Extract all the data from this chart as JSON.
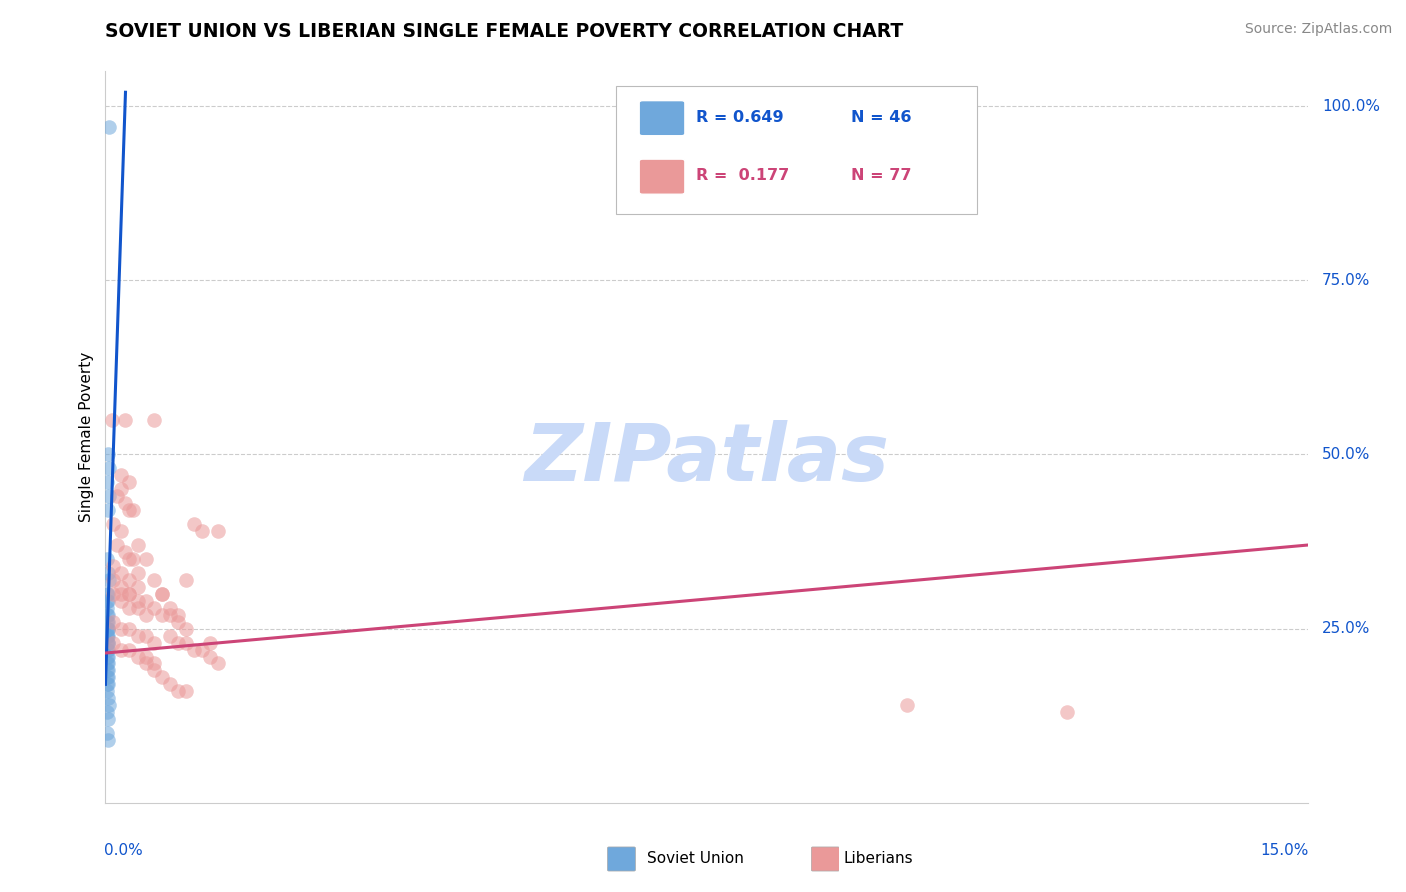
{
  "title": "SOVIET UNION VS LIBERIAN SINGLE FEMALE POVERTY CORRELATION CHART",
  "source": "Source: ZipAtlas.com",
  "ylabel": "Single Female Poverty",
  "x_min": 0.0,
  "x_max": 0.15,
  "y_min": 0.0,
  "y_max": 1.05,
  "right_yticks": [
    0.25,
    0.5,
    0.75,
    1.0
  ],
  "right_yticklabels": [
    "25.0%",
    "50.0%",
    "75.0%",
    "100.0%"
  ],
  "legend_r1": "R = 0.649",
  "legend_n1": "N = 46",
  "legend_r2": "R =  0.177",
  "legend_n2": "N = 77",
  "soviet_color": "#6fa8dc",
  "liberian_color": "#ea9999",
  "soviet_line_color": "#1155cc",
  "liberian_line_color": "#cc4477",
  "watermark": "ZIPatlas",
  "watermark_color": "#c9daf8",
  "grid_color": "#cccccc",
  "soviet_points": [
    [
      0.0005,
      0.97
    ],
    [
      0.0003,
      0.5
    ],
    [
      0.0004,
      0.48
    ],
    [
      0.0002,
      0.46
    ],
    [
      0.0004,
      0.44
    ],
    [
      0.0003,
      0.42
    ],
    [
      0.0002,
      0.35
    ],
    [
      0.0003,
      0.33
    ],
    [
      0.0004,
      0.32
    ],
    [
      0.0002,
      0.3
    ],
    [
      0.0003,
      0.3
    ],
    [
      0.0002,
      0.29
    ],
    [
      0.0003,
      0.29
    ],
    [
      0.0002,
      0.28
    ],
    [
      0.0003,
      0.27
    ],
    [
      0.0002,
      0.27
    ],
    [
      0.0003,
      0.26
    ],
    [
      0.0002,
      0.26
    ],
    [
      0.0003,
      0.25
    ],
    [
      0.0002,
      0.25
    ],
    [
      0.0003,
      0.25
    ],
    [
      0.0002,
      0.24
    ],
    [
      0.0003,
      0.24
    ],
    [
      0.0002,
      0.24
    ],
    [
      0.0003,
      0.23
    ],
    [
      0.0002,
      0.23
    ],
    [
      0.0003,
      0.23
    ],
    [
      0.0002,
      0.22
    ],
    [
      0.0003,
      0.22
    ],
    [
      0.0002,
      0.21
    ],
    [
      0.0003,
      0.21
    ],
    [
      0.0002,
      0.2
    ],
    [
      0.0003,
      0.2
    ],
    [
      0.0002,
      0.19
    ],
    [
      0.0003,
      0.19
    ],
    [
      0.0002,
      0.18
    ],
    [
      0.0003,
      0.18
    ],
    [
      0.0002,
      0.17
    ],
    [
      0.0003,
      0.17
    ],
    [
      0.0002,
      0.16
    ],
    [
      0.0003,
      0.15
    ],
    [
      0.0004,
      0.14
    ],
    [
      0.0002,
      0.13
    ],
    [
      0.0003,
      0.12
    ],
    [
      0.0002,
      0.1
    ],
    [
      0.0003,
      0.09
    ]
  ],
  "liberian_points": [
    [
      0.0008,
      0.55
    ],
    [
      0.002,
      0.47
    ],
    [
      0.003,
      0.46
    ],
    [
      0.0015,
      0.44
    ],
    [
      0.0025,
      0.43
    ],
    [
      0.0035,
      0.42
    ],
    [
      0.001,
      0.4
    ],
    [
      0.002,
      0.39
    ],
    [
      0.0015,
      0.37
    ],
    [
      0.0025,
      0.36
    ],
    [
      0.0035,
      0.35
    ],
    [
      0.001,
      0.34
    ],
    [
      0.002,
      0.33
    ],
    [
      0.003,
      0.32
    ],
    [
      0.004,
      0.31
    ],
    [
      0.001,
      0.3
    ],
    [
      0.002,
      0.29
    ],
    [
      0.003,
      0.28
    ],
    [
      0.004,
      0.28
    ],
    [
      0.005,
      0.27
    ],
    [
      0.001,
      0.26
    ],
    [
      0.002,
      0.25
    ],
    [
      0.003,
      0.25
    ],
    [
      0.004,
      0.24
    ],
    [
      0.005,
      0.24
    ],
    [
      0.006,
      0.23
    ],
    [
      0.001,
      0.23
    ],
    [
      0.002,
      0.22
    ],
    [
      0.003,
      0.22
    ],
    [
      0.004,
      0.21
    ],
    [
      0.0025,
      0.55
    ],
    [
      0.005,
      0.21
    ],
    [
      0.006,
      0.2
    ],
    [
      0.007,
      0.3
    ],
    [
      0.002,
      0.3
    ],
    [
      0.003,
      0.3
    ],
    [
      0.004,
      0.29
    ],
    [
      0.005,
      0.29
    ],
    [
      0.006,
      0.28
    ],
    [
      0.007,
      0.27
    ],
    [
      0.008,
      0.27
    ],
    [
      0.009,
      0.27
    ],
    [
      0.01,
      0.32
    ],
    [
      0.002,
      0.45
    ],
    [
      0.003,
      0.42
    ],
    [
      0.004,
      0.37
    ],
    [
      0.005,
      0.35
    ],
    [
      0.006,
      0.32
    ],
    [
      0.007,
      0.3
    ],
    [
      0.008,
      0.28
    ],
    [
      0.009,
      0.26
    ],
    [
      0.01,
      0.25
    ],
    [
      0.011,
      0.4
    ],
    [
      0.012,
      0.39
    ],
    [
      0.005,
      0.2
    ],
    [
      0.006,
      0.19
    ],
    [
      0.007,
      0.18
    ],
    [
      0.008,
      0.17
    ],
    [
      0.009,
      0.16
    ],
    [
      0.01,
      0.16
    ],
    [
      0.003,
      0.35
    ],
    [
      0.004,
      0.33
    ],
    [
      0.001,
      0.32
    ],
    [
      0.002,
      0.31
    ],
    [
      0.003,
      0.3
    ],
    [
      0.006,
      0.55
    ],
    [
      0.008,
      0.24
    ],
    [
      0.009,
      0.23
    ],
    [
      0.01,
      0.23
    ],
    [
      0.011,
      0.22
    ],
    [
      0.012,
      0.22
    ],
    [
      0.013,
      0.21
    ],
    [
      0.014,
      0.2
    ],
    [
      0.014,
      0.39
    ],
    [
      0.013,
      0.23
    ],
    [
      0.1,
      0.14
    ],
    [
      0.12,
      0.13
    ]
  ],
  "soviet_line_x": [
    0.0,
    0.0025
  ],
  "soviet_line_y": [
    0.17,
    1.02
  ],
  "liberian_line_x": [
    0.0,
    0.15
  ],
  "liberian_line_y": [
    0.215,
    0.37
  ]
}
